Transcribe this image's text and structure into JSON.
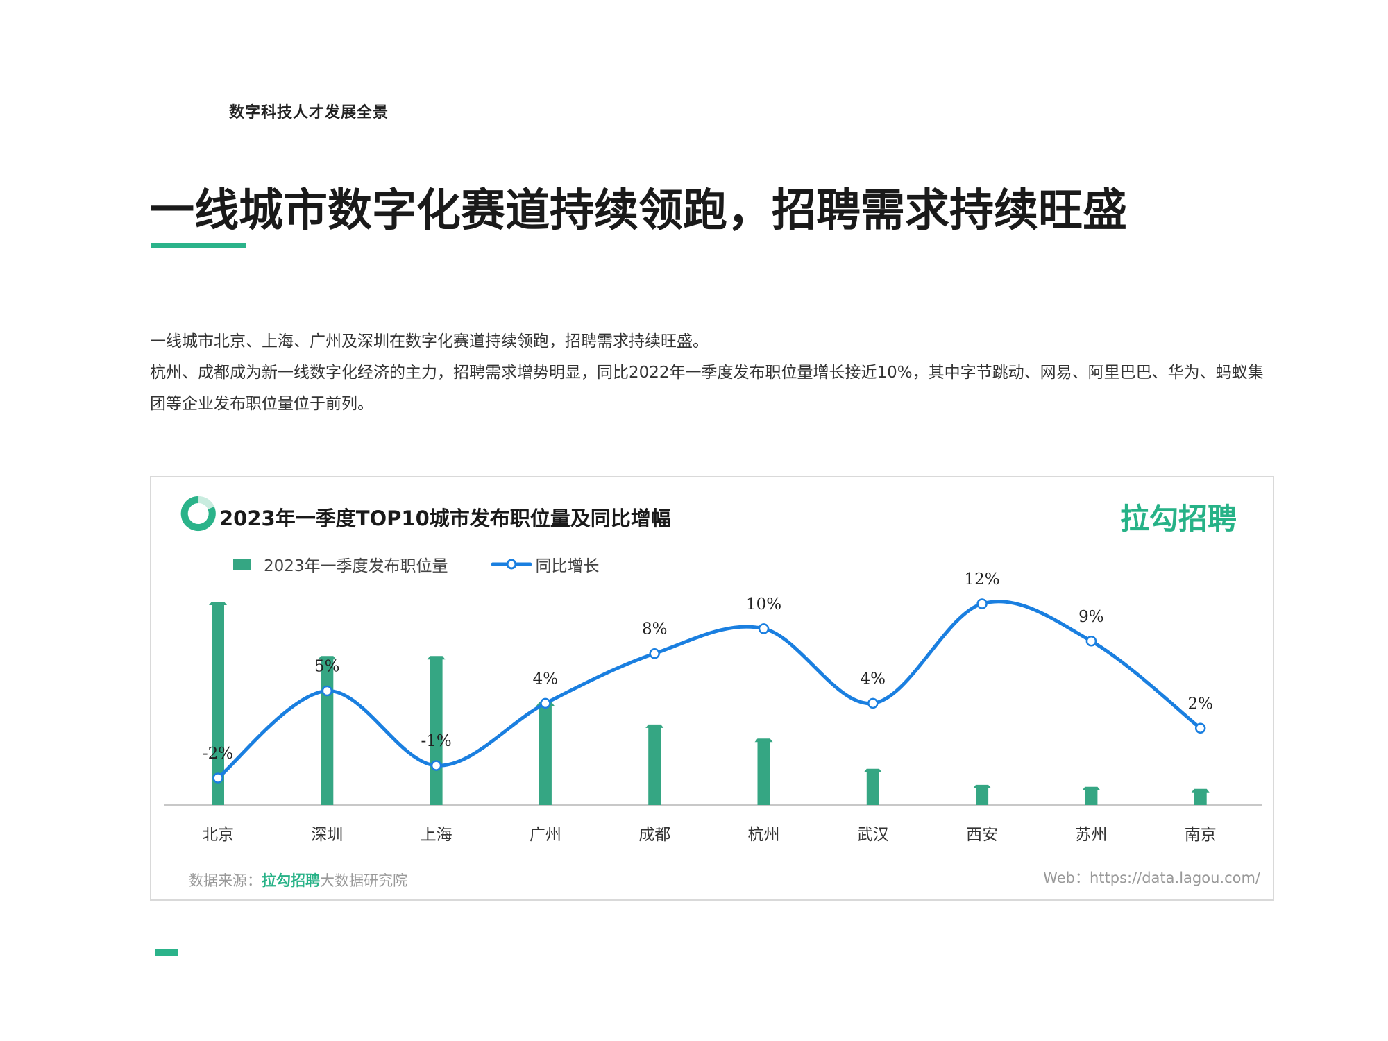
{
  "header": {
    "label": "数字科技人才发展全景"
  },
  "title": "一线城市数字化赛道持续领跑，招聘需求持续旺盛",
  "paragraphs": [
    "一线城市北京、上海、广州及深圳在数字化赛道持续领跑，招聘需求持续旺盛。",
    "杭州、成都成为新一线数字化经济的主力，招聘需求增势明显，同比2022年一季度发布职位量增长接近10%，其中字节跳动、网易、阿里巴巴、华为、蚂蚁集团等企业发布职位量位于前列。"
  ],
  "card": {
    "title": "2023年一季度TOP10城市发布职位量及同比增幅",
    "brand": "拉勾招聘",
    "source_prefix": "数据来源：",
    "source_brand": "拉勾招聘",
    "source_suffix": "大数据研究院",
    "web": "Web：https://data.lagou.com/"
  },
  "colors": {
    "accent": "#2bb38a",
    "bar": "#35a683",
    "line": "#1a7fe0",
    "brand": "#27b287"
  },
  "chart_data": {
    "type": "bar",
    "title": "2023年一季度TOP10城市发布职位量及同比增幅",
    "categories": [
      "北京",
      "深圳",
      "上海",
      "广州",
      "成都",
      "杭州",
      "武汉",
      "西安",
      "苏州",
      "南京"
    ],
    "series": [
      {
        "name": "2023年一季度发布职位量",
        "type": "bar",
        "values": [
          100,
          73,
          73,
          50,
          39,
          32,
          17,
          9,
          8,
          7
        ]
      },
      {
        "name": "同比增长",
        "type": "line",
        "values": [
          -2,
          5,
          -1,
          4,
          8,
          10,
          4,
          12,
          9,
          2
        ],
        "labels": [
          "-2%",
          "5%",
          "-1%",
          "4%",
          "8%",
          "10%",
          "4%",
          "12%",
          "9%",
          "2%"
        ]
      }
    ],
    "legend": "top-left",
    "grid": false
  }
}
